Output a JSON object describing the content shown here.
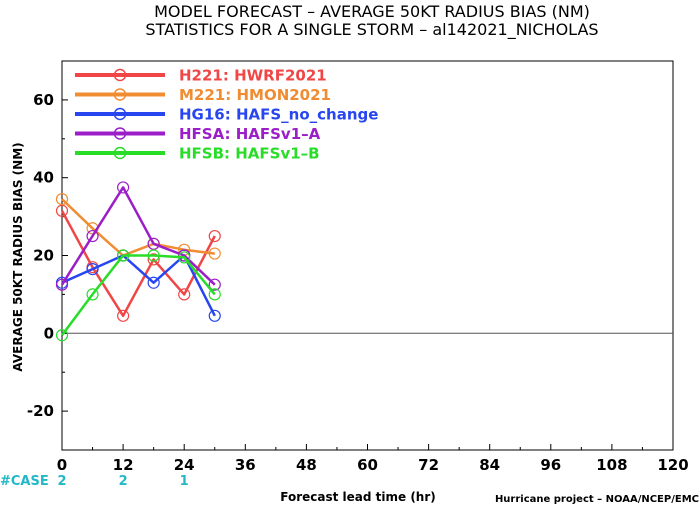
{
  "colors": {
    "H221": "#f04646",
    "M221": "#f08c32",
    "HG16": "#2846f0",
    "HFSA": "#9b1ec8",
    "HFSB": "#28dc28",
    "case": "#22b8c8"
  },
  "case_row": {
    "label": "#CASE",
    "counts": [
      {
        "x": 0,
        "n": "2"
      },
      {
        "x": 12,
        "n": "2"
      },
      {
        "x": 24,
        "n": "1"
      }
    ]
  },
  "credit": "Hurricane project – NOAA/NCEP/EMC",
  "chart_data": {
    "type": "line",
    "title": "MODEL FORECAST – AVERAGE 50KT RADIUS BIAS (NM)",
    "subtitle": "STATISTICS FOR A SINGLE STORM – al142021_NICHOLAS",
    "xlabel": "Forecast lead time (hr)",
    "ylabel": "AVERAGE 50KT RADIUS BIAS (NM)",
    "xlim": [
      0,
      120
    ],
    "ylim": [
      -30,
      70
    ],
    "xticks": [
      "0",
      "12",
      "24",
      "36",
      "48",
      "60",
      "72",
      "84",
      "96",
      "108",
      "120"
    ],
    "yticks": [
      "-20",
      "0",
      "20",
      "40",
      "60"
    ],
    "zero_line": true,
    "legend_position": "top-left",
    "series": [
      {
        "key": "H221",
        "name": "H221: HWRF2021",
        "x": [
          0,
          6,
          12,
          18,
          24,
          30
        ],
        "values": [
          31.5,
          17,
          4.5,
          19,
          10,
          25
        ]
      },
      {
        "key": "M221",
        "name": "M221: HMON2021",
        "x": [
          0,
          6,
          12,
          18,
          24,
          30
        ],
        "values": [
          34.5,
          27,
          20,
          23,
          21.5,
          20.5
        ]
      },
      {
        "key": "HG16",
        "name": "HG16: HAFS_no_change",
        "x": [
          0,
          6,
          12,
          18,
          24,
          30
        ],
        "values": [
          13,
          16.5,
          20,
          13,
          20,
          4.5
        ]
      },
      {
        "key": "HFSA",
        "name": "HFSA: HAFSv1–A",
        "x": [
          0,
          6,
          12,
          18,
          24,
          30
        ],
        "values": [
          12.5,
          25,
          37.5,
          23,
          20,
          12.5
        ]
      },
      {
        "key": "HFSB",
        "name": "HFSB: HAFSv1–B",
        "x": [
          0,
          6,
          12,
          18,
          24,
          30
        ],
        "values": [
          -0.5,
          10,
          20,
          20,
          19.5,
          10
        ]
      }
    ]
  }
}
